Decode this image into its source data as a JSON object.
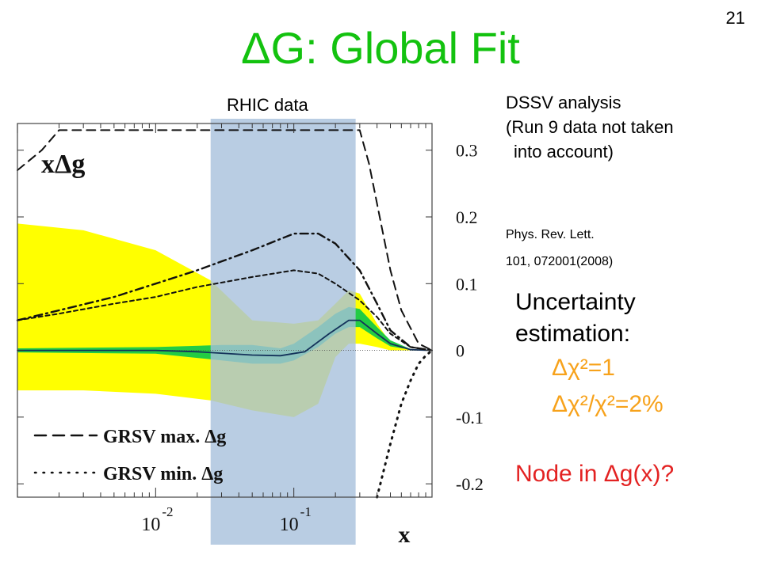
{
  "slide": {
    "title": "ΔG: Global Fit",
    "page_number": "21"
  },
  "rhic_label": "RHIC data",
  "notes": {
    "line1": "DSSV analysis",
    "line2": "(Run 9 data not taken",
    "line3": "into account)"
  },
  "reference": {
    "line1": "Phys. Rev. Lett.",
    "line2": "101, 072001(2008)"
  },
  "uncertainty": {
    "line1": "Uncertainty",
    "line2": "estimation:",
    "crit1": "Δχ²=1",
    "crit2": "Δχ²/χ²=2%"
  },
  "node_question": "Node in Δg(x)?",
  "colors": {
    "title": "#13c20f",
    "band_wide": "#ffff00",
    "band_narrow": "#22cc44",
    "rhic_region": "#a7c0dc",
    "criterion": "#f7a21b",
    "node": "#e32222"
  },
  "chart_data": {
    "type": "line",
    "ylabel": "xΔg",
    "xlabel": "x",
    "x_scale": "log",
    "xlim": [
      0.001,
      1
    ],
    "ylim": [
      -0.22,
      0.34
    ],
    "y_ticks": [
      "0.3",
      "0.2",
      "0.1",
      "0",
      "-0.1",
      "-0.2"
    ],
    "y_tick_values": [
      0.3,
      0.2,
      0.1,
      0,
      -0.1,
      -0.2
    ],
    "x_ticks": [
      "10",
      "10"
    ],
    "x_tick_exponents": [
      "-2",
      "-1"
    ],
    "x_tick_values": [
      0.01,
      0.1
    ],
    "rhic_range": [
      0.025,
      0.28
    ],
    "legend": [
      {
        "label": "GRSV max. Δg",
        "style": "dashed"
      },
      {
        "label": "GRSV min. Δg",
        "style": "dotted"
      }
    ],
    "series": [
      {
        "style": "solid",
        "x": [
          0.001,
          0.002,
          0.005,
          0.01,
          0.02,
          0.05,
          0.08,
          0.12,
          0.18,
          0.25,
          0.3,
          0.4,
          0.5,
          0.7,
          1.0
        ],
        "y": [
          0,
          0,
          0,
          0,
          -0.002,
          -0.007,
          -0.008,
          -0.002,
          0.025,
          0.045,
          0.045,
          0.025,
          0.01,
          0.001,
          0
        ]
      },
      {
        "style": "dashdot",
        "x": [
          0.001,
          0.002,
          0.005,
          0.01,
          0.02,
          0.05,
          0.1,
          0.15,
          0.2,
          0.3,
          0.4,
          0.5,
          0.7,
          1.0
        ],
        "y": [
          0.045,
          0.06,
          0.08,
          0.1,
          0.12,
          0.15,
          0.175,
          0.175,
          0.16,
          0.12,
          0.07,
          0.03,
          0.005,
          0
        ]
      },
      {
        "style": "dashed_short",
        "x": [
          0.001,
          0.002,
          0.005,
          0.01,
          0.02,
          0.05,
          0.1,
          0.15,
          0.2,
          0.3,
          0.4,
          0.5,
          0.7,
          1.0
        ],
        "y": [
          0.045,
          0.055,
          0.07,
          0.08,
          0.095,
          0.11,
          0.12,
          0.115,
          0.1,
          0.075,
          0.05,
          0.025,
          0.005,
          0
        ]
      },
      {
        "style": "dashed_long",
        "x": [
          0.001,
          0.0015,
          0.002,
          0.3,
          0.35,
          0.4,
          0.5,
          0.6,
          0.8,
          1.0
        ],
        "y": [
          0.27,
          0.3,
          0.33,
          0.33,
          0.28,
          0.22,
          0.12,
          0.06,
          0.01,
          0
        ]
      },
      {
        "style": "dotted",
        "x": [
          0.4,
          0.5,
          0.6,
          0.7,
          0.8,
          0.9,
          1.0
        ],
        "y": [
          -0.22,
          -0.14,
          -0.08,
          -0.045,
          -0.02,
          -0.008,
          0
        ]
      }
    ],
    "bands": [
      {
        "name_ref": "wide",
        "x": [
          0.001,
          0.003,
          0.01,
          0.025,
          0.05,
          0.1,
          0.15,
          0.2,
          0.25,
          0.3,
          0.4,
          0.5,
          0.7,
          1.0
        ],
        "upper": [
          0.19,
          0.18,
          0.15,
          0.105,
          0.045,
          0.04,
          0.045,
          0.07,
          0.09,
          0.085,
          0.04,
          0.012,
          0.002,
          0
        ],
        "lower": [
          -0.06,
          -0.06,
          -0.065,
          -0.075,
          -0.09,
          -0.1,
          -0.08,
          -0.01,
          0.01,
          0.01,
          0.005,
          0.0,
          0,
          0
        ]
      },
      {
        "name_ref": "narrow",
        "x": [
          0.001,
          0.01,
          0.03,
          0.05,
          0.08,
          0.1,
          0.15,
          0.2,
          0.25,
          0.3,
          0.4,
          0.5,
          0.7,
          1.0
        ],
        "upper": [
          0.003,
          0.005,
          0.008,
          0.008,
          0.003,
          0.01,
          0.035,
          0.055,
          0.065,
          0.062,
          0.035,
          0.015,
          0.002,
          0
        ],
        "lower": [
          -0.003,
          -0.005,
          -0.015,
          -0.02,
          -0.02,
          -0.015,
          0.005,
          0.025,
          0.035,
          0.035,
          0.018,
          0.006,
          0.001,
          0
        ]
      }
    ]
  }
}
